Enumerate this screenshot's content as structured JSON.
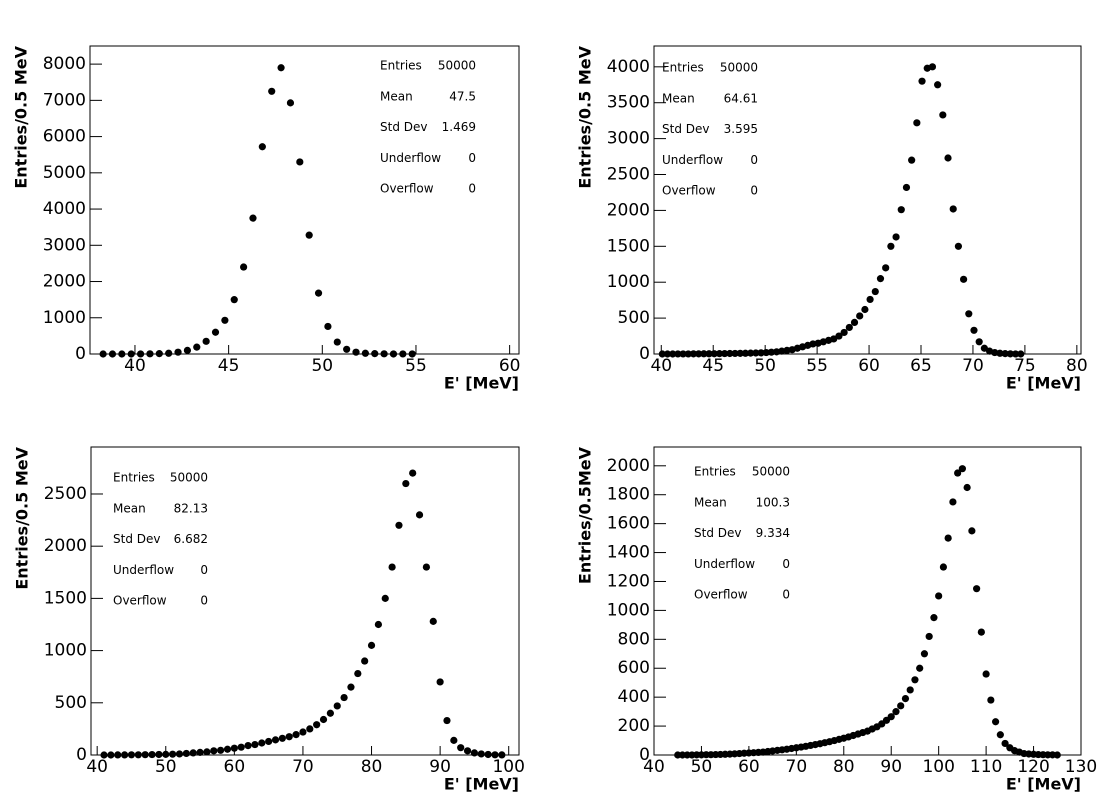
{
  "chart_data": [
    {
      "type": "scatter",
      "xlabel": "E' [MeV]",
      "ylabel": "Entries/0.5 MeV",
      "color": "#000000",
      "xlim": [
        37.6,
        60.5
      ],
      "ylim": [
        0,
        8500
      ],
      "xticks": [
        40,
        45,
        50,
        55,
        60
      ],
      "yticks": [
        0,
        1000,
        2000,
        3000,
        4000,
        5000,
        6000,
        7000,
        8000
      ],
      "x": [
        38.3,
        38.8,
        39.3,
        39.8,
        40.3,
        40.8,
        41.3,
        41.8,
        42.3,
        42.8,
        43.3,
        43.8,
        44.3,
        44.8,
        45.3,
        45.8,
        46.3,
        46.8,
        47.3,
        47.8,
        48.3,
        48.8,
        49.3,
        49.8,
        50.3,
        50.8,
        51.3,
        51.8,
        52.3,
        52.8,
        53.3,
        53.8,
        54.3,
        54.8
      ],
      "values": [
        0,
        0,
        0,
        0,
        2,
        5,
        10,
        20,
        50,
        100,
        190,
        350,
        600,
        930,
        1500,
        2400,
        3750,
        5720,
        7250,
        7900,
        6930,
        5300,
        3280,
        1680,
        760,
        330,
        130,
        50,
        20,
        10,
        5,
        1,
        2,
        1
      ],
      "stats": [
        {
          "label": "Entries",
          "value": 50000
        },
        {
          "label": "Mean",
          "value": 47.5
        },
        {
          "label": "Std Dev",
          "value": 1.469
        },
        {
          "label": "Underflow",
          "value": 0
        },
        {
          "label": "Overflow",
          "value": 0
        }
      ]
    },
    {
      "type": "scatter",
      "xlabel": "E' [MeV]",
      "ylabel": "Entries/0.5 MeV",
      "color": "#000000",
      "xlim": [
        39.3,
        80.4
      ],
      "ylim": [
        0,
        4290
      ],
      "xticks": [
        40,
        45,
        50,
        55,
        60,
        65,
        70,
        75,
        80
      ],
      "yticks": [
        0,
        500,
        1000,
        1500,
        2000,
        2500,
        3000,
        3500,
        4000
      ],
      "x": [
        40.1,
        40.6,
        41.1,
        41.6,
        42.1,
        42.6,
        43.1,
        43.6,
        44.1,
        44.6,
        45.1,
        45.6,
        46.1,
        46.6,
        47.1,
        47.6,
        48.1,
        48.6,
        49.1,
        49.6,
        50.1,
        50.6,
        51.1,
        51.6,
        52.1,
        52.6,
        53.1,
        53.6,
        54.1,
        54.6,
        55.1,
        55.6,
        56.1,
        56.6,
        57.1,
        57.6,
        58.1,
        58.6,
        59.1,
        59.6,
        60.1,
        60.6,
        61.1,
        61.6,
        62.1,
        62.6,
        63.1,
        63.6,
        64.1,
        64.6,
        65.1,
        65.6,
        66.1,
        66.6,
        67.1,
        67.6,
        68.1,
        68.6,
        69.1,
        69.6,
        70.1,
        70.6,
        71.1,
        71.6,
        72.1,
        72.6,
        73.1,
        73.6,
        74.1,
        74.6
      ],
      "values": [
        0,
        0,
        0,
        1,
        1,
        1,
        2,
        2,
        3,
        3,
        4,
        5,
        6,
        7,
        8,
        9,
        10,
        12,
        14,
        16,
        20,
        25,
        30,
        40,
        50,
        60,
        80,
        100,
        120,
        140,
        150,
        170,
        190,
        210,
        250,
        300,
        370,
        440,
        530,
        620,
        760,
        870,
        1050,
        1200,
        1500,
        1630,
        2010,
        2320,
        2700,
        3220,
        3800,
        3980,
        4000,
        3750,
        3330,
        2730,
        2020,
        1500,
        1040,
        560,
        330,
        170,
        80,
        40,
        20,
        10,
        5,
        2,
        1,
        0
      ],
      "stats": [
        {
          "label": "Entries",
          "value": 50000
        },
        {
          "label": "Mean",
          "value": 64.61
        },
        {
          "label": "Std Dev",
          "value": 3.595
        },
        {
          "label": "Underflow",
          "value": 0
        },
        {
          "label": "Overflow",
          "value": 0
        }
      ]
    },
    {
      "type": "scatter",
      "xlabel": "E' [MeV]",
      "ylabel": "Entries/0.5 MeV",
      "color": "#000000",
      "xlim": [
        39.1,
        101.5
      ],
      "ylim": [
        0,
        2950
      ],
      "xticks": [
        40,
        50,
        60,
        70,
        80,
        90,
        100
      ],
      "yticks": [
        0,
        500,
        1000,
        1500,
        2000,
        2500
      ],
      "x": [
        41,
        42,
        43,
        44,
        45,
        46,
        47,
        48,
        49,
        50,
        51,
        52,
        53,
        54,
        55,
        56,
        57,
        58,
        59,
        60,
        61,
        62,
        63,
        64,
        65,
        66,
        67,
        68,
        69,
        70,
        71,
        72,
        73,
        74,
        75,
        76,
        77,
        78,
        79,
        80,
        81,
        82,
        83,
        84,
        85,
        86,
        87,
        88,
        89,
        90,
        91,
        92,
        93,
        94,
        95,
        96,
        97,
        98,
        99
      ],
      "values": [
        0,
        0,
        1,
        1,
        2,
        2,
        3,
        4,
        5,
        6,
        8,
        10,
        15,
        20,
        25,
        30,
        40,
        45,
        55,
        65,
        75,
        90,
        100,
        115,
        130,
        145,
        160,
        175,
        195,
        220,
        250,
        290,
        340,
        400,
        470,
        550,
        650,
        780,
        900,
        1050,
        1250,
        1500,
        1800,
        2200,
        2600,
        2700,
        2300,
        1800,
        1280,
        700,
        330,
        140,
        70,
        40,
        20,
        10,
        5,
        2,
        1
      ],
      "stats": [
        {
          "label": "Entries",
          "value": 50000
        },
        {
          "label": "Mean",
          "value": 82.13
        },
        {
          "label": "Std Dev",
          "value": 6.682
        },
        {
          "label": "Underflow",
          "value": 0
        },
        {
          "label": "Overflow",
          "value": 0
        }
      ]
    },
    {
      "type": "scatter",
      "xlabel": "E' [MeV]",
      "ylabel": "Entries/0.5MeV",
      "color": "#000000",
      "xlim": [
        40,
        130
      ],
      "ylim": [
        0,
        2130
      ],
      "xticks": [
        40,
        50,
        60,
        70,
        80,
        90,
        100,
        110,
        120,
        130
      ],
      "yticks": [
        0,
        200,
        400,
        600,
        800,
        1000,
        1200,
        1400,
        1600,
        1800,
        2000
      ],
      "x": [
        45,
        46,
        47,
        48,
        49,
        50,
        51,
        52,
        53,
        54,
        55,
        56,
        57,
        58,
        59,
        60,
        61,
        62,
        63,
        64,
        65,
        66,
        67,
        68,
        69,
        70,
        71,
        72,
        73,
        74,
        75,
        76,
        77,
        78,
        79,
        80,
        81,
        82,
        83,
        84,
        85,
        86,
        87,
        88,
        89,
        90,
        91,
        92,
        93,
        94,
        95,
        96,
        97,
        98,
        99,
        100,
        101,
        102,
        103,
        104,
        105,
        106,
        107,
        108,
        109,
        110,
        111,
        112,
        113,
        114,
        115,
        116,
        117,
        118,
        119,
        120,
        121,
        122,
        123,
        124,
        125
      ],
      "values": [
        0,
        0,
        0,
        0,
        1,
        1,
        2,
        2,
        3,
        4,
        5,
        6,
        8,
        10,
        12,
        14,
        16,
        18,
        20,
        24,
        28,
        32,
        36,
        40,
        45,
        50,
        55,
        60,
        66,
        72,
        78,
        85,
        92,
        100,
        108,
        116,
        125,
        135,
        145,
        155,
        165,
        180,
        195,
        215,
        240,
        265,
        300,
        340,
        390,
        450,
        520,
        600,
        700,
        820,
        950,
        1100,
        1300,
        1500,
        1750,
        1950,
        1980,
        1850,
        1550,
        1150,
        850,
        560,
        380,
        230,
        140,
        80,
        50,
        30,
        20,
        10,
        7,
        5,
        3,
        2,
        1,
        1,
        0
      ],
      "stats": [
        {
          "label": "Entries",
          "value": 50000
        },
        {
          "label": "Mean",
          "value": 100.3
        },
        {
          "label": "Std Dev",
          "value": 9.334
        },
        {
          "label": "Underflow",
          "value": 0
        },
        {
          "label": "Overflow",
          "value": 0
        }
      ]
    }
  ]
}
